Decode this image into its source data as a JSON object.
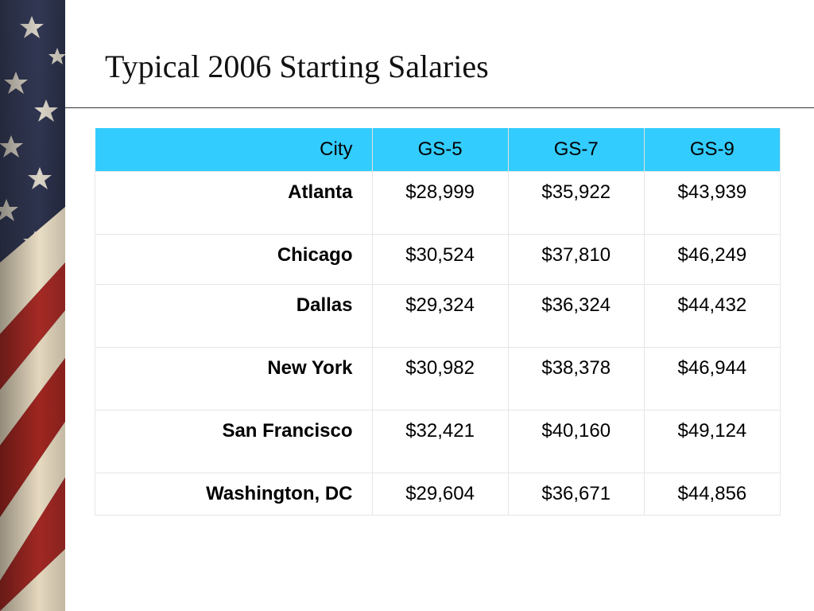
{
  "slide": {
    "title": "Typical 2006 Starting Salaries"
  },
  "decoration": {
    "flag_icon": "american-flag-stars-stripes",
    "colors": {
      "header_bg": "#33ccff",
      "stripe_red": "#a42a25",
      "field_blue": "#2d3550",
      "stripe_cream": "#e8dcc4"
    }
  },
  "table": {
    "headers": [
      "City",
      "GS-5",
      "GS-7",
      "GS-9"
    ],
    "rows": [
      {
        "city": "Atlanta",
        "gs5": "$28,999",
        "gs7": "$35,922",
        "gs9": "$43,939"
      },
      {
        "city": "Chicago",
        "gs5": "$30,524",
        "gs7": "$37,810",
        "gs9": "$46,249"
      },
      {
        "city": "Dallas",
        "gs5": "$29,324",
        "gs7": "$36,324",
        "gs9": "$44,432"
      },
      {
        "city": "New York",
        "gs5": "$30,982",
        "gs7": "$38,378",
        "gs9": "$46,944"
      },
      {
        "city": "San Francisco",
        "gs5": "$32,421",
        "gs7": "$40,160",
        "gs9": "$49,124"
      },
      {
        "city": "Washington, DC",
        "gs5": "$29,604",
        "gs7": "$36,671",
        "gs9": "$44,856"
      }
    ]
  }
}
